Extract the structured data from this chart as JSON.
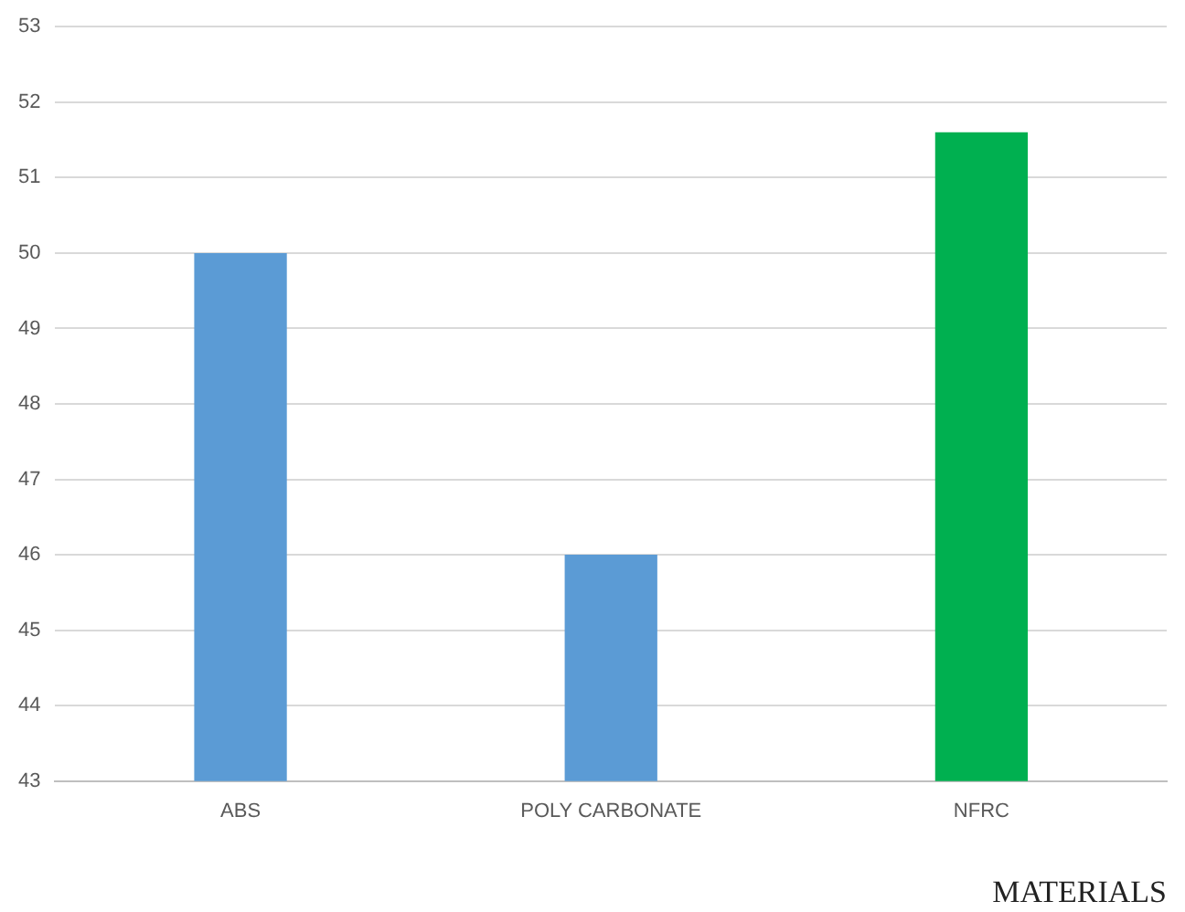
{
  "chart_data": {
    "type": "bar",
    "xlabel": "MATERIALS",
    "categories": [
      "ABS",
      "POLY CARBONATE",
      "NFRC"
    ],
    "values": [
      50,
      46,
      51.6
    ],
    "colors": [
      "#5b9bd5",
      "#5b9bd5",
      "#00b050"
    ],
    "ylim": [
      43,
      53
    ],
    "yticks": [
      43,
      44,
      45,
      46,
      47,
      48,
      49,
      50,
      51,
      52,
      53
    ],
    "grid": "y",
    "legend": false
  }
}
